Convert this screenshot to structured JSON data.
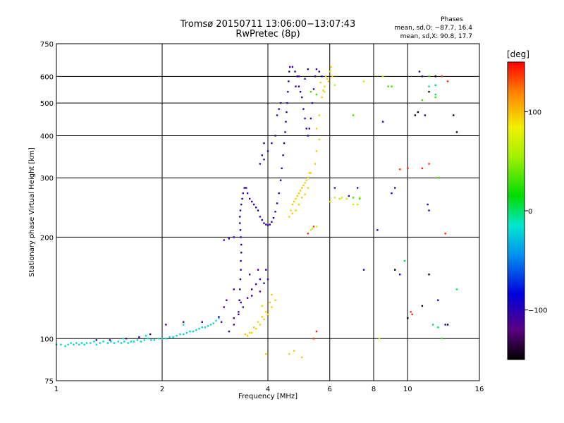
{
  "header": {
    "title": "Tromsø 20150711 13:06:00−13:07:43",
    "subtitle": "RwPretec (8p)"
  },
  "stats": {
    "heading": "Phases",
    "line_o": "mean, sd,O: −87.7, 16.4",
    "line_x": "mean, sd,X:  90.8, 17.7"
  },
  "chart_data": {
    "type": "scatter",
    "xlabel": "Frequency [MHz]",
    "ylabel": "Stationary phase Virtual Height [km]",
    "x_scale": "log",
    "y_scale": "log",
    "xlim": [
      1,
      16
    ],
    "ylim": [
      75,
      750
    ],
    "x_ticks": [
      {
        "value": 1,
        "label": "1"
      },
      {
        "value": 2,
        "label": "2"
      },
      {
        "value": 4,
        "label": "4"
      },
      {
        "value": 6,
        "label": "6"
      },
      {
        "value": 8,
        "label": "8"
      },
      {
        "value": 10,
        "label": "10"
      },
      {
        "value": 16,
        "label": "16"
      }
    ],
    "y_ticks": [
      {
        "value": 75,
        "label": "75"
      },
      {
        "value": 100,
        "label": "100"
      },
      {
        "value": 200,
        "label": "200"
      },
      {
        "value": 300,
        "label": "300"
      },
      {
        "value": 400,
        "label": "400"
      },
      {
        "value": 500,
        "label": "500"
      },
      {
        "value": 600,
        "label": "600"
      },
      {
        "value": 750,
        "label": "750"
      }
    ],
    "grid": true,
    "colorbar": {
      "unit": "[deg]",
      "range": [
        -150,
        150
      ],
      "ticks": [
        {
          "value": 100,
          "label": "100"
        },
        {
          "value": 0,
          "label": "0"
        },
        {
          "value": -100,
          "label": "−100"
        }
      ]
    },
    "series": [
      {
        "phase_deg": -20,
        "points": [
          [
            1.0,
            96
          ],
          [
            1.03,
            96
          ],
          [
            1.06,
            95
          ],
          [
            1.08,
            96
          ],
          [
            1.1,
            97
          ],
          [
            1.12,
            96
          ],
          [
            1.14,
            97
          ],
          [
            1.16,
            96
          ],
          [
            1.18,
            97
          ],
          [
            1.2,
            96
          ],
          [
            1.22,
            97
          ],
          [
            1.25,
            97
          ],
          [
            1.28,
            98
          ],
          [
            1.3,
            96
          ],
          [
            1.33,
            97
          ],
          [
            1.36,
            98
          ],
          [
            1.4,
            97
          ],
          [
            1.43,
            98
          ],
          [
            1.46,
            97
          ],
          [
            1.5,
            98
          ],
          [
            1.53,
            97
          ],
          [
            1.56,
            98
          ],
          [
            1.6,
            97
          ],
          [
            1.63,
            98
          ],
          [
            1.66,
            98
          ],
          [
            1.7,
            99
          ],
          [
            1.74,
            98
          ],
          [
            1.78,
            99
          ],
          [
            1.82,
            100
          ],
          [
            1.86,
            99
          ],
          [
            1.9,
            99
          ],
          [
            1.95,
            100
          ],
          [
            2.0,
            100
          ],
          [
            2.05,
            100
          ],
          [
            2.1,
            101
          ],
          [
            2.15,
            101
          ],
          [
            2.2,
            102
          ],
          [
            2.25,
            103
          ],
          [
            2.3,
            103
          ],
          [
            2.35,
            104
          ],
          [
            2.4,
            105
          ],
          [
            2.45,
            105
          ],
          [
            2.5,
            106
          ],
          [
            2.55,
            107
          ],
          [
            2.6,
            108
          ],
          [
            2.65,
            108
          ],
          [
            2.7,
            109
          ],
          [
            2.75,
            110
          ],
          [
            2.8,
            111
          ],
          [
            2.85,
            113
          ],
          [
            2.9,
            115
          ],
          [
            1.55,
            100
          ],
          [
            1.8,
            102
          ],
          [
            2.3,
            110
          ]
        ]
      },
      {
        "phase_deg": -110,
        "points": [
          [
            1.3,
            99
          ],
          [
            1.42,
            99
          ],
          [
            1.58,
            100
          ],
          [
            1.72,
            101
          ],
          [
            1.85,
            103
          ],
          [
            2.05,
            110
          ],
          [
            2.3,
            112
          ],
          [
            2.6,
            112
          ],
          [
            2.9,
            116
          ],
          [
            3.1,
            105
          ],
          [
            3.2,
            110
          ],
          [
            3.3,
            118
          ],
          [
            3.4,
            124
          ],
          [
            3.5,
            132
          ],
          [
            3.6,
            140
          ],
          [
            3.7,
            145
          ],
          [
            3.8,
            150
          ],
          [
            3.9,
            146
          ],
          [
            4.0,
            150
          ],
          [
            3.55,
            155
          ],
          [
            3.75,
            160
          ],
          [
            3.35,
            128
          ],
          [
            3.2,
            115
          ],
          [
            3.0,
            124
          ],
          [
            3.05,
            130
          ],
          [
            2.95,
            112
          ],
          [
            3.2,
            140
          ],
          [
            3.6,
            134
          ],
          [
            3.95,
            160
          ],
          [
            3.8,
            138
          ]
        ]
      },
      {
        "phase_deg": -105,
        "points": [
          [
            3.3,
            120
          ],
          [
            3.32,
            130
          ],
          [
            3.33,
            140
          ],
          [
            3.34,
            150
          ],
          [
            3.35,
            160
          ],
          [
            3.35,
            170
          ],
          [
            3.36,
            180
          ],
          [
            3.36,
            190
          ],
          [
            3.35,
            200
          ],
          [
            3.34,
            210
          ],
          [
            3.33,
            220
          ],
          [
            3.33,
            230
          ],
          [
            3.34,
            240
          ],
          [
            3.36,
            250
          ],
          [
            3.38,
            260
          ],
          [
            3.4,
            270
          ],
          [
            3.43,
            280
          ],
          [
            3.47,
            280
          ],
          [
            3.5,
            270
          ],
          [
            3.55,
            260
          ],
          [
            3.6,
            255
          ],
          [
            3.65,
            250
          ],
          [
            3.7,
            245
          ],
          [
            3.75,
            240
          ],
          [
            3.8,
            230
          ],
          [
            3.85,
            225
          ],
          [
            3.9,
            220
          ],
          [
            3.95,
            218
          ],
          [
            4.0,
            217
          ],
          [
            4.05,
            218
          ],
          [
            4.1,
            222
          ],
          [
            4.15,
            228
          ],
          [
            4.2,
            238
          ],
          [
            4.25,
            252
          ],
          [
            4.3,
            270
          ],
          [
            4.35,
            295
          ],
          [
            4.38,
            320
          ],
          [
            4.42,
            350
          ],
          [
            4.45,
            380
          ],
          [
            4.48,
            410
          ],
          [
            4.5,
            440
          ],
          [
            4.52,
            470
          ],
          [
            4.54,
            500
          ],
          [
            4.56,
            540
          ],
          [
            4.58,
            580
          ],
          [
            4.6,
            620
          ],
          [
            4.62,
            640
          ],
          [
            4.7,
            640
          ],
          [
            4.78,
            620
          ],
          [
            4.85,
            600
          ],
          [
            4.9,
            560
          ],
          [
            4.95,
            540
          ],
          [
            5.0,
            520
          ],
          [
            5.05,
            480
          ],
          [
            5.1,
            450
          ],
          [
            5.15,
            420
          ],
          [
            5.2,
            400
          ],
          [
            5.25,
            420
          ],
          [
            5.3,
            450
          ],
          [
            5.35,
            500
          ],
          [
            5.4,
            550
          ],
          [
            5.45,
            600
          ],
          [
            5.5,
            630
          ],
          [
            3.2,
            200
          ],
          [
            3.1,
            198
          ],
          [
            3.0,
            196
          ],
          [
            3.8,
            330
          ],
          [
            3.9,
            340
          ],
          [
            3.85,
            350
          ],
          [
            4.0,
            360
          ],
          [
            4.1,
            380
          ],
          [
            4.2,
            400
          ],
          [
            4.35,
            500
          ],
          [
            4.3,
            480
          ],
          [
            4.25,
            460
          ],
          [
            3.9,
            380
          ],
          [
            4.8,
            560
          ],
          [
            4.9,
            600
          ],
          [
            5.6,
            620
          ],
          [
            5.7,
            600
          ],
          [
            5.1,
            590
          ],
          [
            5.2,
            630
          ]
        ]
      },
      {
        "phase_deg": 95,
        "points": [
          [
            3.5,
            102
          ],
          [
            3.6,
            104
          ],
          [
            3.7,
            107
          ],
          [
            3.8,
            110
          ],
          [
            3.9,
            114
          ],
          [
            4.0,
            118
          ],
          [
            4.1,
            124
          ],
          [
            4.2,
            130
          ],
          [
            4.05,
            128
          ],
          [
            3.95,
            120
          ],
          [
            3.85,
            116
          ],
          [
            3.75,
            112
          ],
          [
            3.65,
            108
          ],
          [
            3.55,
            104
          ],
          [
            3.45,
            103
          ],
          [
            4.6,
            230
          ],
          [
            4.65,
            240
          ],
          [
            4.7,
            250
          ],
          [
            4.75,
            255
          ],
          [
            4.8,
            260
          ],
          [
            4.85,
            265
          ],
          [
            4.9,
            270
          ],
          [
            4.95,
            275
          ],
          [
            5.0,
            280
          ],
          [
            5.05,
            285
          ],
          [
            5.1,
            290
          ],
          [
            5.15,
            295
          ],
          [
            5.2,
            300
          ],
          [
            5.25,
            310
          ],
          [
            4.7,
            235
          ],
          [
            4.8,
            240
          ],
          [
            4.9,
            250
          ],
          [
            5.0,
            262
          ],
          [
            5.1,
            268
          ],
          [
            5.2,
            280
          ],
          [
            5.3,
            310
          ],
          [
            5.45,
            330
          ],
          [
            5.5,
            360
          ],
          [
            5.6,
            390
          ],
          [
            5.5,
            420
          ],
          [
            5.6,
            460
          ],
          [
            5.7,
            520
          ],
          [
            5.8,
            560
          ],
          [
            5.9,
            590
          ],
          [
            6.0,
            620
          ],
          [
            6.05,
            640
          ],
          [
            5.85,
            600
          ],
          [
            5.95,
            580
          ],
          [
            6.1,
            600
          ],
          [
            5.75,
            545
          ],
          [
            5.65,
            575
          ],
          [
            4.6,
            90
          ],
          [
            4.75,
            92
          ],
          [
            5.0,
            88
          ],
          [
            3.95,
            90
          ],
          [
            4.1,
            135
          ],
          [
            3.85,
            125
          ]
        ]
      },
      {
        "phase_deg": 70,
        "points": [
          [
            5.3,
            210
          ],
          [
            5.35,
            212
          ],
          [
            5.5,
            215
          ],
          [
            6.0,
            255
          ],
          [
            6.2,
            262
          ],
          [
            6.4,
            260
          ],
          [
            7.2,
            250
          ],
          [
            7.3,
            262
          ],
          [
            8.3,
            100
          ],
          [
            6.5,
            262
          ],
          [
            6.7,
            260
          ],
          [
            7.0,
            250
          ],
          [
            5.8,
            540
          ],
          [
            6.2,
            565
          ],
          [
            7.5,
            580
          ],
          [
            8.5,
            600
          ]
        ]
      },
      {
        "phase_deg": 140,
        "points": [
          [
            5.2,
            205
          ],
          [
            5.4,
            215
          ],
          [
            5.5,
            105
          ],
          [
            5.4,
            100
          ],
          [
            9.5,
            318
          ],
          [
            10.0,
            320
          ],
          [
            11.5,
            330
          ],
          [
            11.0,
            320
          ],
          [
            10.2,
            120
          ],
          [
            10.3,
            118
          ],
          [
            12.5,
            600
          ],
          [
            13.0,
            580
          ],
          [
            12.8,
            205
          ]
        ]
      },
      {
        "phase_deg": 30,
        "points": [
          [
            7.0,
            460
          ],
          [
            9.0,
            560
          ],
          [
            8.8,
            560
          ],
          [
            11.0,
            510
          ],
          [
            11.5,
            600
          ],
          [
            12.0,
            520
          ],
          [
            12.2,
            300
          ],
          [
            12.5,
            100
          ],
          [
            7.3,
            260
          ],
          [
            7.0,
            262
          ],
          [
            5.3,
            540
          ],
          [
            5.5,
            530
          ]
        ]
      },
      {
        "phase_deg": -150,
        "points": [
          [
            10.5,
            460
          ],
          [
            10.7,
            470
          ],
          [
            11.5,
            540
          ],
          [
            13.5,
            460
          ],
          [
            13.8,
            410
          ],
          [
            9.2,
            160
          ],
          [
            10.0,
            115
          ],
          [
            11.0,
            125
          ],
          [
            11.5,
            155
          ],
          [
            12.0,
            600
          ],
          [
            13.0,
            110
          ]
        ]
      },
      {
        "phase_deg": -100,
        "points": [
          [
            10.8,
            620
          ],
          [
            11.0,
            600
          ],
          [
            11.2,
            460
          ],
          [
            11.5,
            240
          ],
          [
            11.4,
            250
          ],
          [
            9.5,
            155
          ],
          [
            12.2,
            130
          ],
          [
            12.8,
            110
          ],
          [
            8.5,
            440
          ],
          [
            9.0,
            270
          ],
          [
            9.2,
            280
          ],
          [
            8.2,
            210
          ],
          [
            7.5,
            160
          ],
          [
            7.2,
            280
          ],
          [
            6.8,
            265
          ],
          [
            6.2,
            280
          ]
        ]
      },
      {
        "phase_deg": 0,
        "points": [
          [
            11.5,
            560
          ],
          [
            12.0,
            565
          ],
          [
            12.0,
            530
          ],
          [
            9.8,
            170
          ],
          [
            11.8,
            110
          ],
          [
            12.2,
            108
          ],
          [
            13.8,
            140
          ]
        ]
      }
    ]
  }
}
